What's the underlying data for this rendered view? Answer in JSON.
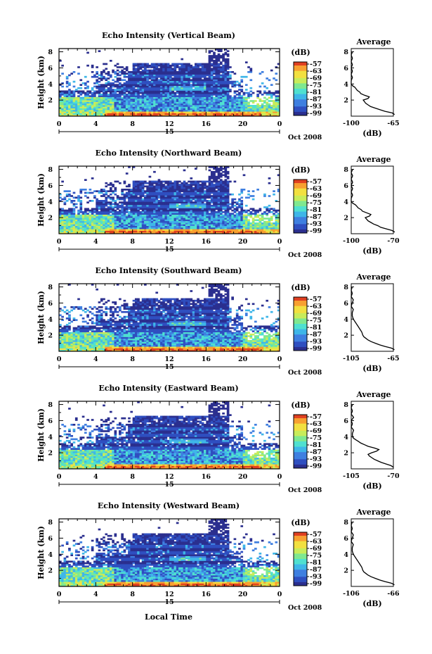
{
  "figure": {
    "xlabel": "Local Time",
    "x_ticks": [
      "0",
      "4",
      "8",
      "12",
      "16",
      "20",
      "0"
    ],
    "date_label": "15",
    "date_suffix": "Oct 2008",
    "ylabel": "Height (km)",
    "y_ticks": [
      "2",
      "4",
      "6",
      "8"
    ],
    "colorbar_unit": "(dB)",
    "avg_title": "Average",
    "avg_xlabel": "(dB)",
    "colormap": [
      "#2b2f8f",
      "#2f4fc0",
      "#3f7fe0",
      "#3fb6e8",
      "#4fe0d0",
      "#7fe890",
      "#c8ec5a",
      "#f2e040",
      "#f8a030",
      "#e04020"
    ]
  },
  "chart_data": [
    {
      "type": "heatmap",
      "title": "Echo Intensity (Vertical Beam)",
      "xlabel": "Local Time",
      "ylabel": "Height (km)",
      "xlim": [
        0,
        24
      ],
      "ylim": [
        0,
        8.4
      ],
      "colorbar": {
        "unit": "(dB)",
        "ticks": [
          -57,
          -63,
          -69,
          -75,
          -81,
          -87,
          -93,
          -99
        ]
      },
      "average_profile": {
        "title": "Average",
        "xlabel": "(dB)",
        "xlim": [
          -100,
          -65
        ],
        "x_ticks": [
          "-100",
          "-65"
        ],
        "points": [
          [
            -64,
            0.2
          ],
          [
            -66,
            0.4
          ],
          [
            -72,
            0.6
          ],
          [
            -76,
            0.8
          ],
          [
            -80,
            1.0
          ],
          [
            -84,
            1.2
          ],
          [
            -86,
            1.4
          ],
          [
            -88,
            1.6
          ],
          [
            -89,
            1.8
          ],
          [
            -90,
            2.0
          ],
          [
            -86,
            2.2
          ],
          [
            -85,
            2.4
          ],
          [
            -89,
            2.6
          ],
          [
            -92,
            2.8
          ],
          [
            -93,
            3.0
          ],
          [
            -95,
            3.2
          ],
          [
            -96,
            3.4
          ],
          [
            -97,
            3.6
          ],
          [
            -99,
            3.8
          ],
          [
            -100,
            4.0
          ],
          [
            -100,
            4.4
          ],
          [
            -99,
            4.8
          ],
          [
            -100,
            5.2
          ],
          [
            -99,
            5.6
          ],
          [
            -100,
            6.0
          ],
          [
            -99,
            6.4
          ],
          [
            -100,
            6.8
          ],
          [
            -99,
            7.2
          ],
          [
            -100,
            7.6
          ],
          [
            -99,
            8.0
          ]
        ]
      }
    },
    {
      "type": "heatmap",
      "title": "Echo Intensity (Northward Beam)",
      "xlabel": "Local Time",
      "ylabel": "Height (km)",
      "xlim": [
        0,
        24
      ],
      "ylim": [
        0,
        8.4
      ],
      "colorbar": {
        "unit": "(dB)",
        "ticks": [
          -57,
          -63,
          -69,
          -75,
          -81,
          -87,
          -93,
          -99
        ]
      },
      "average_profile": {
        "title": "Average",
        "xlabel": "(dB)",
        "xlim": [
          -100,
          -70
        ],
        "x_ticks": [
          "-100",
          "-70"
        ],
        "points": [
          [
            -69,
            0.2
          ],
          [
            -71,
            0.4
          ],
          [
            -75,
            0.6
          ],
          [
            -79,
            0.8
          ],
          [
            -81,
            1.0
          ],
          [
            -84,
            1.2
          ],
          [
            -86,
            1.4
          ],
          [
            -88,
            1.6
          ],
          [
            -89,
            1.8
          ],
          [
            -90,
            2.0
          ],
          [
            -87,
            2.2
          ],
          [
            -86,
            2.4
          ],
          [
            -89,
            2.6
          ],
          [
            -92,
            2.8
          ],
          [
            -93,
            3.0
          ],
          [
            -95,
            3.2
          ],
          [
            -96,
            3.4
          ],
          [
            -97,
            3.6
          ],
          [
            -99,
            3.8
          ],
          [
            -100,
            4.0
          ],
          [
            -100,
            4.4
          ],
          [
            -99,
            4.8
          ],
          [
            -100,
            5.2
          ],
          [
            -99,
            5.6
          ],
          [
            -100,
            6.0
          ],
          [
            -99,
            6.4
          ],
          [
            -100,
            6.8
          ],
          [
            -99,
            7.2
          ],
          [
            -100,
            7.6
          ],
          [
            -99,
            8.0
          ]
        ]
      }
    },
    {
      "type": "heatmap",
      "title": "Echo Intensity (Southward Beam)",
      "xlabel": "Local Time",
      "ylabel": "Height (km)",
      "xlim": [
        0,
        24
      ],
      "ylim": [
        0,
        8.4
      ],
      "colorbar": {
        "unit": "(dB)",
        "ticks": [
          -57,
          -63,
          -69,
          -75,
          -81,
          -87,
          -93,
          -99
        ]
      },
      "average_profile": {
        "title": "Average",
        "xlabel": "(dB)",
        "xlim": [
          -105,
          -65
        ],
        "x_ticks": [
          "-105",
          "-65"
        ],
        "points": [
          [
            -64,
            0.2
          ],
          [
            -67,
            0.4
          ],
          [
            -73,
            0.6
          ],
          [
            -78,
            0.8
          ],
          [
            -82,
            1.0
          ],
          [
            -86,
            1.2
          ],
          [
            -89,
            1.4
          ],
          [
            -91,
            1.6
          ],
          [
            -93,
            1.8
          ],
          [
            -94,
            2.0
          ],
          [
            -95,
            2.4
          ],
          [
            -97,
            2.8
          ],
          [
            -99,
            3.2
          ],
          [
            -101,
            3.6
          ],
          [
            -103,
            4.0
          ],
          [
            -104,
            4.4
          ],
          [
            -104,
            4.8
          ],
          [
            -103,
            5.2
          ],
          [
            -105,
            5.6
          ],
          [
            -104,
            6.0
          ],
          [
            -103,
            6.4
          ],
          [
            -105,
            6.8
          ],
          [
            -104,
            7.2
          ],
          [
            -105,
            7.6
          ],
          [
            -104,
            8.0
          ]
        ]
      }
    },
    {
      "type": "heatmap",
      "title": "Echo Intensity (Eastward Beam)",
      "xlabel": "Local Time",
      "ylabel": "Height (km)",
      "xlim": [
        0,
        24
      ],
      "ylim": [
        0,
        8.4
      ],
      "colorbar": {
        "unit": "(dB)",
        "ticks": [
          -57,
          -63,
          -69,
          -75,
          -81,
          -87,
          -93,
          -99
        ]
      },
      "average_profile": {
        "title": "Average",
        "xlabel": "(dB)",
        "xlim": [
          -105,
          -70
        ],
        "x_ticks": [
          "-105",
          "-70"
        ],
        "points": [
          [
            -70,
            0.2
          ],
          [
            -72,
            0.4
          ],
          [
            -76,
            0.6
          ],
          [
            -80,
            0.8
          ],
          [
            -83,
            1.0
          ],
          [
            -86,
            1.2
          ],
          [
            -88,
            1.4
          ],
          [
            -90,
            1.6
          ],
          [
            -91,
            1.8
          ],
          [
            -88,
            2.0
          ],
          [
            -84,
            2.2
          ],
          [
            -82,
            2.4
          ],
          [
            -86,
            2.6
          ],
          [
            -91,
            2.8
          ],
          [
            -94,
            3.0
          ],
          [
            -97,
            3.2
          ],
          [
            -99,
            3.4
          ],
          [
            -101,
            3.6
          ],
          [
            -103,
            3.8
          ],
          [
            -104,
            4.0
          ],
          [
            -104,
            4.4
          ],
          [
            -103,
            4.8
          ],
          [
            -105,
            5.2
          ],
          [
            -104,
            5.6
          ],
          [
            -105,
            6.0
          ],
          [
            -103,
            6.4
          ],
          [
            -105,
            6.8
          ],
          [
            -104,
            7.2
          ],
          [
            -105,
            7.6
          ],
          [
            -104,
            8.0
          ]
        ]
      }
    },
    {
      "type": "heatmap",
      "title": "Echo Intensity (Westward Beam)",
      "xlabel": "Local Time",
      "ylabel": "Height (km)",
      "xlim": [
        0,
        24
      ],
      "ylim": [
        0,
        8.4
      ],
      "colorbar": {
        "unit": "(dB)",
        "ticks": [
          -57,
          -63,
          -69,
          -75,
          -81,
          -87,
          -93,
          -99
        ]
      },
      "average_profile": {
        "title": "Average",
        "xlabel": "(dB)",
        "xlim": [
          -106,
          -66
        ],
        "x_ticks": [
          "-106",
          "-66"
        ],
        "points": [
          [
            -65,
            0.2
          ],
          [
            -68,
            0.4
          ],
          [
            -74,
            0.6
          ],
          [
            -79,
            0.8
          ],
          [
            -83,
            1.0
          ],
          [
            -87,
            1.2
          ],
          [
            -90,
            1.4
          ],
          [
            -92,
            1.6
          ],
          [
            -94,
            1.8
          ],
          [
            -95,
            2.0
          ],
          [
            -96,
            2.4
          ],
          [
            -98,
            2.8
          ],
          [
            -100,
            3.2
          ],
          [
            -102,
            3.6
          ],
          [
            -104,
            4.0
          ],
          [
            -105,
            4.4
          ],
          [
            -105,
            4.8
          ],
          [
            -104,
            5.2
          ],
          [
            -106,
            5.6
          ],
          [
            -105,
            6.0
          ],
          [
            -104,
            6.4
          ],
          [
            -106,
            6.8
          ],
          [
            -105,
            7.2
          ],
          [
            -106,
            7.6
          ],
          [
            -105,
            8.0
          ]
        ]
      }
    }
  ]
}
